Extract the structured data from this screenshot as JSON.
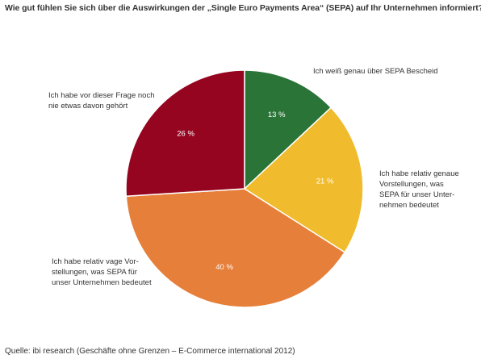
{
  "title": "Wie gut fühlen Sie sich über die Auswirkungen der „Single Euro Payments Area“ (SEPA) auf Ihr Unternehmen informiert?",
  "source": "Quelle: ibi research (Geschäfte ohne Grenzen – E-Commerce international 2012)",
  "chart_data": {
    "type": "pie",
    "title": "Wie gut fühlen Sie sich über die Auswirkungen der „Single Euro Payments Area“ (SEPA) auf Ihr Unternehmen informiert?",
    "slices": [
      {
        "label": "Ich weiß genau über SEPA Bescheid",
        "value": 13,
        "value_label": "13 %",
        "color": "#2a7437"
      },
      {
        "label": "Ich habe relativ genaue Vorstellungen, was SEPA für unser Unternehmen bedeutet",
        "value": 21,
        "value_label": "21 %",
        "color": "#f0bb2c"
      },
      {
        "label": "Ich habe relativ vage Vorstellungen, was SEPA für unser Unternehmen bedeutet",
        "value": 40,
        "value_label": "40 %",
        "color": "#e67f3a"
      },
      {
        "label": "Ich habe vor dieser Frage noch nie etwas davon gehört",
        "value": 26,
        "value_label": "26 %",
        "color": "#950520"
      }
    ],
    "legend": "none"
  },
  "labels": {
    "slice0": "Ich weiß genau über SEPA Bescheid",
    "slice1": "Ich habe relativ genaue\nVorstellungen, was\nSEPA für unser Unter-\nnehmen bedeutet",
    "slice2": "Ich habe relativ vage Vor-\nstellungen, was SEPA für\nunser Unternehmen bedeutet",
    "slice3": "Ich habe vor dieser Frage noch\nnie etwas davon gehört"
  }
}
